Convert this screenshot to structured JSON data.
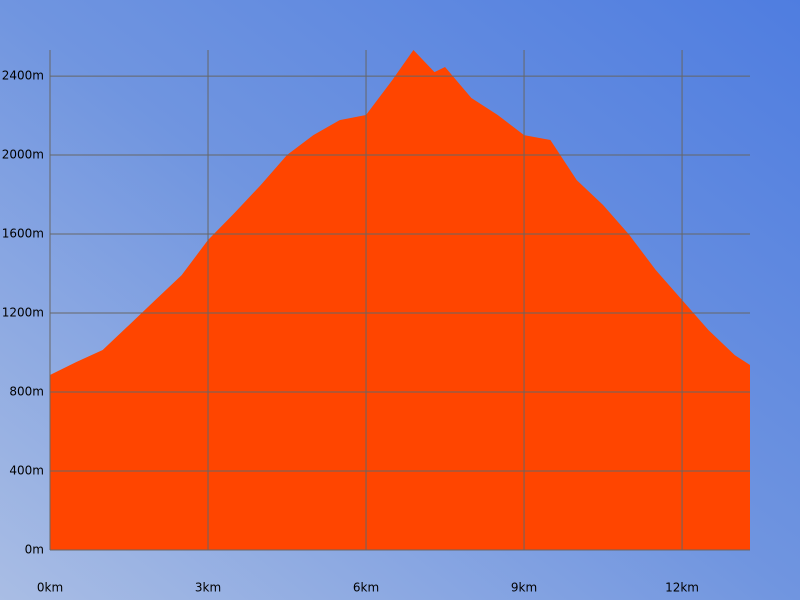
{
  "chart_data": {
    "type": "area",
    "color": "#ff4500",
    "grid": true,
    "x": [
      0,
      0.5,
      1,
      1.5,
      2,
      2.5,
      3,
      3.5,
      4,
      4.5,
      5,
      5.5,
      6,
      6.5,
      6.9,
      7.3,
      7.5,
      8,
      8.5,
      9,
      9.5,
      10,
      10.5,
      11,
      11.5,
      12,
      12.5,
      13,
      13.29
    ],
    "values": [
      886,
      952,
      1013,
      1139,
      1266,
      1392,
      1570,
      1706,
      1848,
      2000,
      2101,
      2177,
      2203,
      2380,
      2532,
      2420,
      2446,
      2289,
      2203,
      2101,
      2076,
      1873,
      1747,
      1595,
      1418,
      1266,
      1114,
      987,
      937
    ],
    "xlim": [
      0,
      13.29
    ],
    "ylim": [
      0,
      2532
    ],
    "xticks": [
      {
        "value": 0,
        "label": "0km"
      },
      {
        "value": 3,
        "label": "3km"
      },
      {
        "value": 6,
        "label": "6km"
      },
      {
        "value": 9,
        "label": "9km"
      },
      {
        "value": 12,
        "label": "12km"
      }
    ],
    "yticks": [
      {
        "value": 0,
        "label": "0m"
      },
      {
        "value": 400,
        "label": "400m"
      },
      {
        "value": 800,
        "label": "800m"
      },
      {
        "value": 1200,
        "label": "1200m"
      },
      {
        "value": 1600,
        "label": "1600m"
      },
      {
        "value": 2000,
        "label": "2000m"
      },
      {
        "value": 2400,
        "label": "2400m"
      }
    ]
  }
}
